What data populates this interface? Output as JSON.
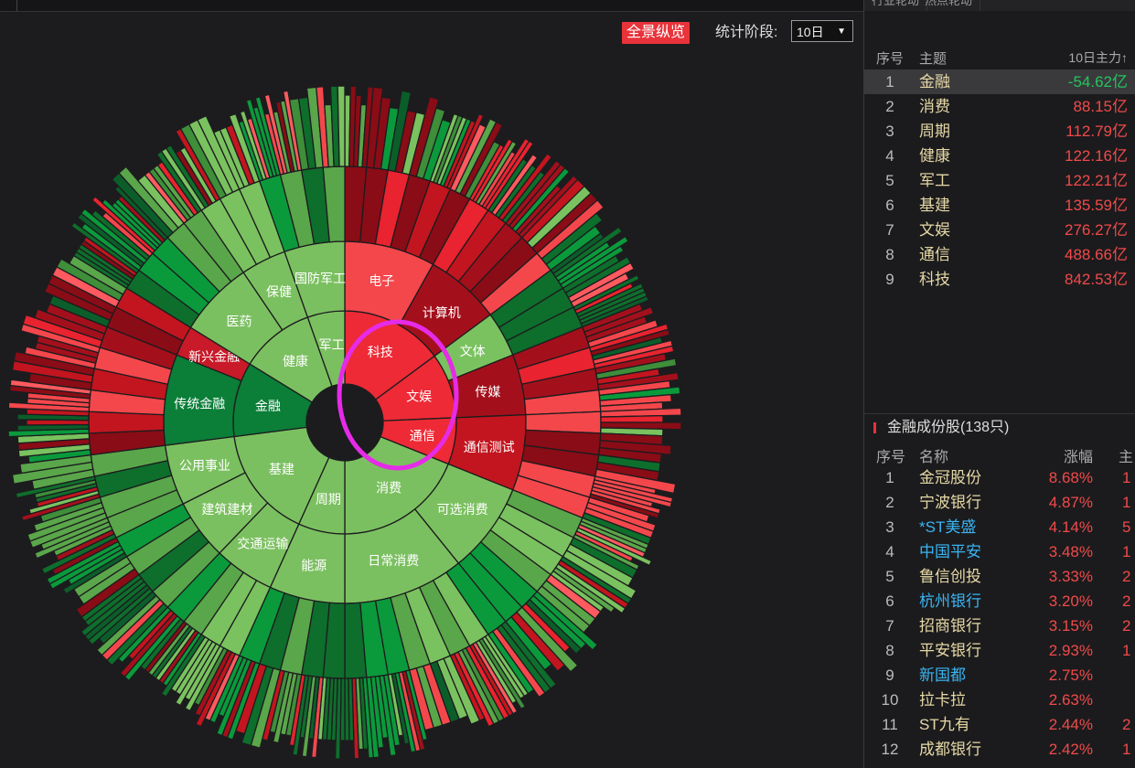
{
  "left_tabs": [],
  "right_tabs": [
    "行业轮动",
    "热点轮动"
  ],
  "toolbar": {
    "panorama": "全景纵览",
    "period_label": "统计阶段:",
    "period_value": "10日",
    "period_arrow": "▼"
  },
  "chart_data": {
    "type": "sunburst",
    "inner": [
      {
        "name": "科技",
        "color": "#ee2a36",
        "children": [
          {
            "name": "电子",
            "color": "#f4474c",
            "leaves": 6
          },
          {
            "name": "计算机",
            "color": "#a3101c",
            "leaves": 5
          }
        ]
      },
      {
        "name": "文娱",
        "color": "#ee2a36",
        "children": [
          {
            "name": "文体",
            "color": "#7ac25f",
            "leaves": 3
          },
          {
            "name": "传媒",
            "color": "#a3101c",
            "leaves": 4
          }
        ]
      },
      {
        "name": "通信",
        "color": "#ee2a36",
        "children": [
          {
            "name": "通信测试",
            "color": "#c3151f",
            "leaves": 5
          }
        ]
      },
      {
        "name": "消费",
        "color": "#7bc060",
        "children": [
          {
            "name": "可选消费",
            "color": "#7bc060",
            "leaves": 6
          },
          {
            "name": "日常消费",
            "color": "#7bc060",
            "leaves": 8
          }
        ]
      },
      {
        "name": "周期",
        "color": "#7bc060",
        "children": [
          {
            "name": "能源",
            "color": "#7bc060",
            "leaves": 5
          }
        ]
      },
      {
        "name": "基建",
        "color": "#7bc060",
        "children": [
          {
            "name": "交通运输",
            "color": "#7bc060",
            "leaves": 4
          },
          {
            "name": "建筑建材",
            "color": "#7bc060",
            "leaves": 4
          },
          {
            "name": "公用事业",
            "color": "#7bc060",
            "leaves": 4
          }
        ]
      },
      {
        "name": "金融",
        "color": "#0b7e38",
        "children": [
          {
            "name": "传统金融",
            "color": "#0b7e38",
            "leaves": 6
          },
          {
            "name": "新兴金融",
            "color": "#c81a28",
            "leaves": 2
          }
        ]
      },
      {
        "name": "健康",
        "color": "#7bc060",
        "children": [
          {
            "name": "医药",
            "color": "#7bc060",
            "leaves": 5
          },
          {
            "name": "保健",
            "color": "#7bc060",
            "leaves": 3
          }
        ]
      },
      {
        "name": "军工",
        "color": "#7bc060",
        "children": [
          {
            "name": "国防军工",
            "color": "#7bc060",
            "leaves": 4
          }
        ]
      }
    ]
  },
  "ranking": {
    "headers": {
      "idx": "序号",
      "theme": "主题",
      "value": "10日主力↑"
    },
    "rows": [
      {
        "idx": "1",
        "theme": "金融",
        "value": "-54.62亿",
        "tone": "green"
      },
      {
        "idx": "2",
        "theme": "消费",
        "value": "88.15亿",
        "tone": "red"
      },
      {
        "idx": "3",
        "theme": "周期",
        "value": "112.79亿",
        "tone": "red"
      },
      {
        "idx": "4",
        "theme": "健康",
        "value": "122.16亿",
        "tone": "red"
      },
      {
        "idx": "5",
        "theme": "军工",
        "value": "122.21亿",
        "tone": "red"
      },
      {
        "idx": "6",
        "theme": "基建",
        "value": "135.59亿",
        "tone": "red"
      },
      {
        "idx": "7",
        "theme": "文娱",
        "value": "276.27亿",
        "tone": "red"
      },
      {
        "idx": "8",
        "theme": "通信",
        "value": "488.66亿",
        "tone": "red"
      },
      {
        "idx": "9",
        "theme": "科技",
        "value": "842.53亿",
        "tone": "red"
      }
    ]
  },
  "stocks": {
    "title": "金融成份股(138只)",
    "headers": {
      "idx": "序号",
      "name": "名称",
      "change": "涨幅",
      "main": "主"
    },
    "rows": [
      {
        "idx": "1",
        "name": "金冠股份",
        "change": "8.68%",
        "extra": "1",
        "blue": false
      },
      {
        "idx": "2",
        "name": "宁波银行",
        "change": "4.87%",
        "extra": "1",
        "blue": false
      },
      {
        "idx": "3",
        "name": "*ST美盛",
        "change": "4.14%",
        "extra": "5",
        "blue": true
      },
      {
        "idx": "4",
        "name": "中国平安",
        "change": "3.48%",
        "extra": "1",
        "blue": true
      },
      {
        "idx": "5",
        "name": "鲁信创投",
        "change": "3.33%",
        "extra": "2",
        "blue": false
      },
      {
        "idx": "6",
        "name": "杭州银行",
        "change": "3.20%",
        "extra": "2",
        "blue": true
      },
      {
        "idx": "7",
        "name": "招商银行",
        "change": "3.15%",
        "extra": "2",
        "blue": false
      },
      {
        "idx": "8",
        "name": "平安银行",
        "change": "2.93%",
        "extra": "1",
        "blue": false
      },
      {
        "idx": "9",
        "name": "新国都",
        "change": "2.75%",
        "extra": "",
        "blue": true
      },
      {
        "idx": "10",
        "name": "拉卡拉",
        "change": "2.63%",
        "extra": "",
        "blue": false
      },
      {
        "idx": "11",
        "name": "ST九有",
        "change": "2.44%",
        "extra": "2",
        "blue": false
      },
      {
        "idx": "12",
        "name": "成都银行",
        "change": "2.42%",
        "extra": "1",
        "blue": false
      }
    ]
  }
}
